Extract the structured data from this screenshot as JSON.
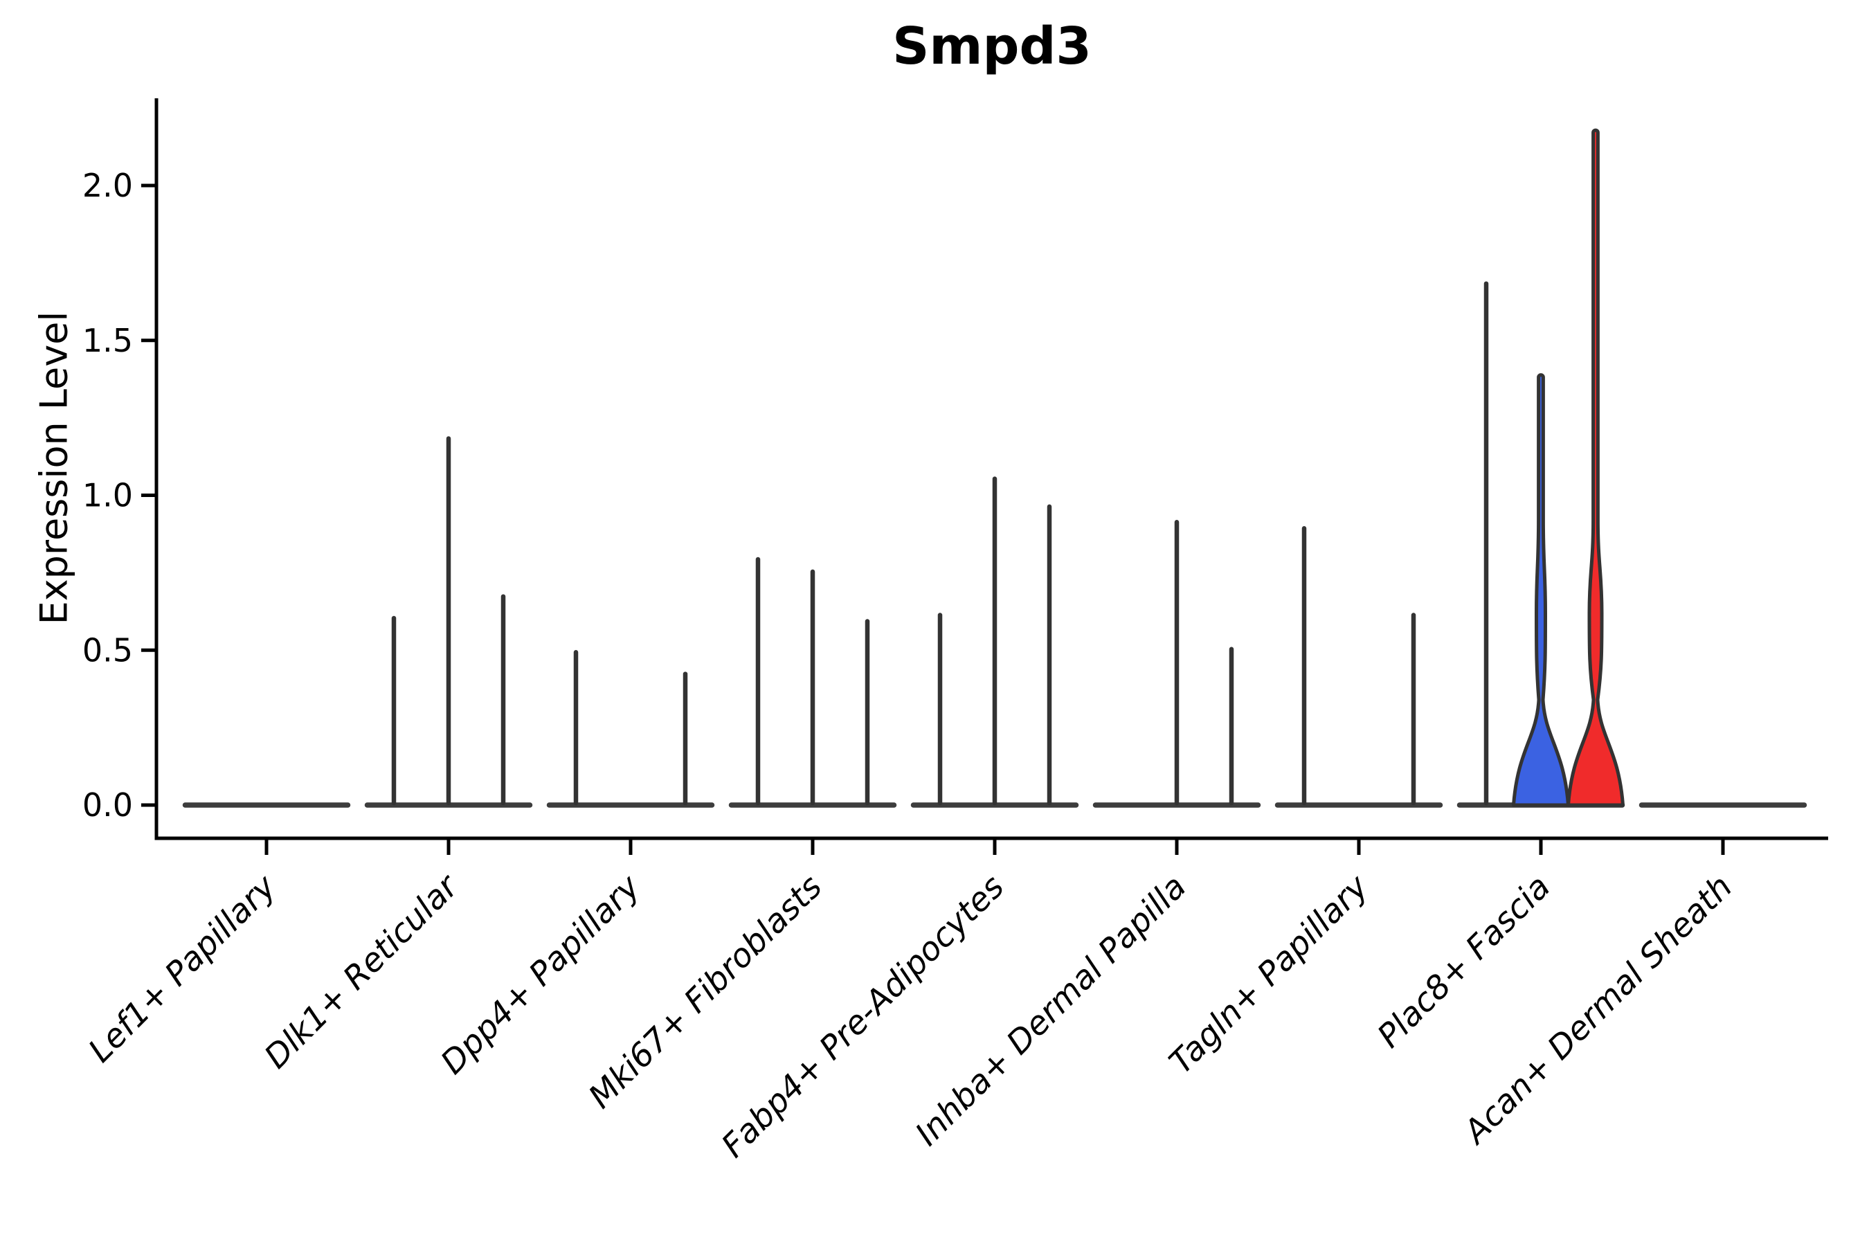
{
  "chart_data": {
    "type": "violin",
    "title": "Smpd3",
    "ylabel": "Expression Level",
    "yticks": [
      0.0,
      0.5,
      1.0,
      1.5,
      2.0
    ],
    "ytick_labels": [
      "0.0",
      "0.5",
      "1.0",
      "1.5",
      "2.0"
    ],
    "ylim": [
      -0.11,
      2.28
    ],
    "grid": false,
    "legend": "none",
    "categories": [
      "Lef1+ Papillary",
      "Dlk1+ Reticular",
      "Dpp4+ Papillary",
      "Mki67+ Fibroblasts",
      "Fabp4+ Pre-Adipocytes",
      "Inhba+ Dermal Papilla",
      "Tagln+ Papillary",
      "Plac8+ Fascia",
      "Acan+ Dermal Sheath"
    ],
    "violins_per_category": 3,
    "groups": [
      {
        "label": "Lef1+ Papillary",
        "violins": [
          {
            "max": 0
          },
          {
            "max": 0
          },
          {
            "max": 0
          }
        ]
      },
      {
        "label": "Dlk1+ Reticular",
        "violins": [
          {
            "max": 0.61
          },
          {
            "max": 1.19
          },
          {
            "max": 0.68
          }
        ]
      },
      {
        "label": "Dpp4+ Papillary",
        "violins": [
          {
            "max": 0.5
          },
          {
            "max": 0
          },
          {
            "max": 0.43
          }
        ]
      },
      {
        "label": "Mki67+ Fibroblasts",
        "violins": [
          {
            "max": 0.8
          },
          {
            "max": 0.76
          },
          {
            "max": 0.6
          }
        ]
      },
      {
        "label": "Fabp4+ Pre-Adipocytes",
        "violins": [
          {
            "max": 0.62
          },
          {
            "max": 1.06
          },
          {
            "max": 0.97
          }
        ]
      },
      {
        "label": "Inhba+ Dermal Papilla",
        "violins": [
          {
            "max": 0
          },
          {
            "max": 0.92
          },
          {
            "max": 0.51
          }
        ]
      },
      {
        "label": "Tagln+ Papillary",
        "violins": [
          {
            "max": 0.9
          },
          {
            "max": 0
          },
          {
            "max": 0.62
          }
        ]
      },
      {
        "label": "Plac8+ Fascia",
        "violins": [
          {
            "max": 1.69
          },
          {
            "max": 1.39,
            "shape": "filled",
            "fill": "#3B62E2",
            "bulge": 6.5
          },
          {
            "max": 2.18,
            "shape": "filled",
            "fill": "#F02B2B",
            "bulge": 9
          }
        ]
      },
      {
        "label": "Acan+ Dermal Sheath",
        "violins": [
          {
            "max": 0
          },
          {
            "max": 0
          },
          {
            "max": 0
          }
        ]
      }
    ],
    "colors": {
      "violin_outline": "#333333",
      "baseline_bar": "#3d3d3d",
      "axis": "#000000",
      "text": "#000000",
      "fill_blue": "#3B62E2",
      "fill_red": "#F02B2B"
    }
  }
}
